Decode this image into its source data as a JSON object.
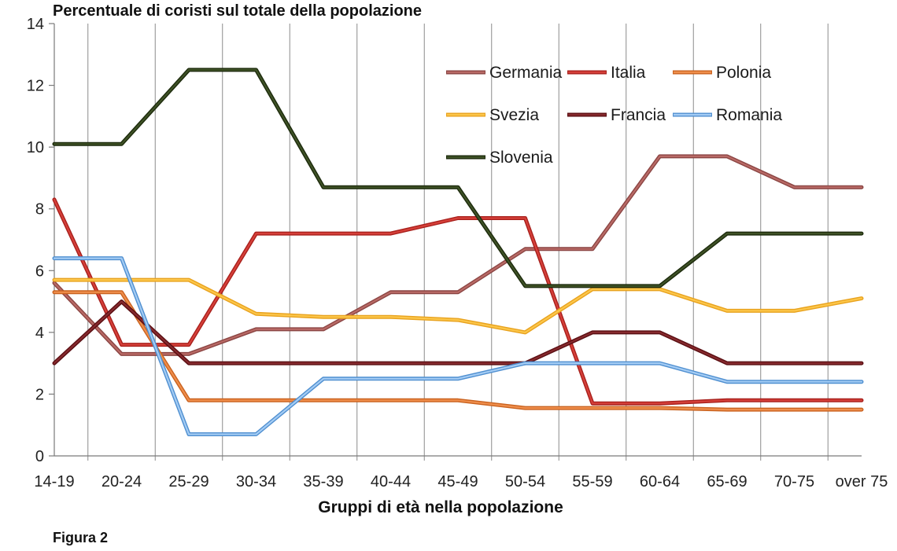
{
  "chart_data": {
    "type": "line",
    "title": "Percentuale di coristi sul totale della popolazione",
    "xlabel": "Gruppi di età nella popolazione",
    "categories": [
      "14-19",
      "20-24",
      "25-29",
      "30-34",
      "35-39",
      "40-44",
      "45-49",
      "50-54",
      "55-59",
      "60-64",
      "65-69",
      "70-75",
      "over 75"
    ],
    "ylim": [
      0,
      14
    ],
    "yticks": [
      0,
      2,
      4,
      6,
      8,
      10,
      12,
      14
    ],
    "grid": "vertical",
    "legend_position": "top-right",
    "series": [
      {
        "name": "Germania",
        "color": "#b96a66",
        "edge_color": "#8b4543",
        "values": [
          5.6,
          3.3,
          3.3,
          4.1,
          4.1,
          5.3,
          5.3,
          6.7,
          6.7,
          9.7,
          9.7,
          8.7,
          8.7
        ]
      },
      {
        "name": "Italia",
        "color": "#d6403a",
        "edge_color": "#a8201c",
        "values": [
          8.3,
          3.6,
          3.6,
          7.2,
          7.2,
          7.2,
          7.7,
          7.7,
          1.7,
          1.7,
          1.8,
          1.8,
          1.8
        ]
      },
      {
        "name": "Polonia",
        "color": "#ef8e4c",
        "edge_color": "#c9621f",
        "values": [
          5.3,
          5.3,
          1.8,
          1.8,
          1.8,
          1.8,
          1.8,
          1.55,
          1.55,
          1.55,
          1.5,
          1.5,
          1.5
        ]
      },
      {
        "name": "Svezia",
        "color": "#fcc64a",
        "edge_color": "#e8a21e",
        "values": [
          5.7,
          5.7,
          5.7,
          4.6,
          4.5,
          4.5,
          4.4,
          4.0,
          5.4,
          5.4,
          4.7,
          4.7,
          5.1
        ]
      },
      {
        "name": "Francia",
        "color": "#862a2e",
        "edge_color": "#5a0e12",
        "values": [
          3.0,
          5.0,
          3.0,
          3.0,
          3.0,
          3.0,
          3.0,
          3.0,
          4.0,
          4.0,
          3.0,
          3.0,
          3.0
        ]
      },
      {
        "name": "Romania",
        "color": "#a4ccf4",
        "edge_color": "#4f8fd0",
        "values": [
          6.4,
          6.4,
          0.7,
          0.7,
          2.5,
          2.5,
          2.5,
          3.0,
          3.0,
          3.0,
          2.4,
          2.4,
          2.4
        ]
      },
      {
        "name": "Slovenia",
        "color": "#3f5226",
        "edge_color": "#1c2a0c",
        "values": [
          10.1,
          10.1,
          12.5,
          12.5,
          8.7,
          8.7,
          8.7,
          5.5,
          5.5,
          5.5,
          7.2,
          7.2,
          7.2
        ]
      }
    ]
  },
  "figure": {
    "caption": "Figura 2"
  }
}
